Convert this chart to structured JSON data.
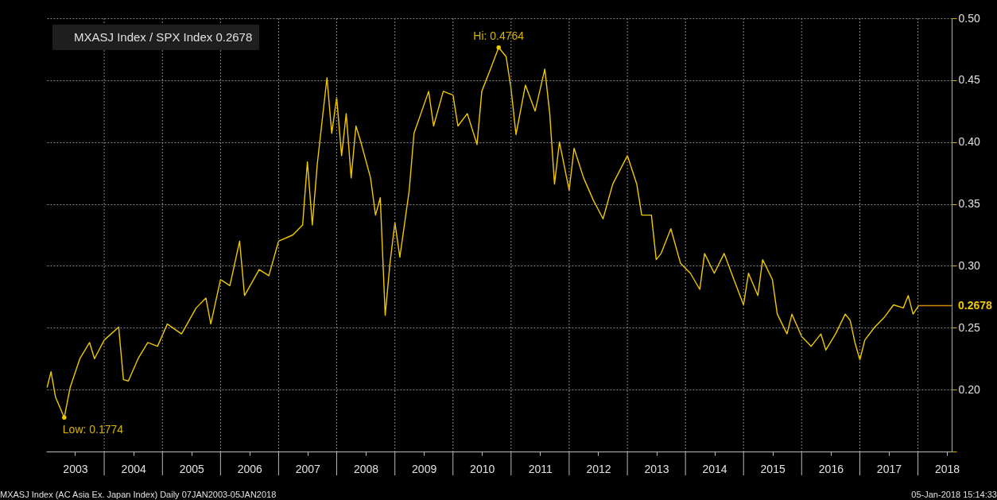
{
  "chart_data": {
    "type": "line",
    "x": [
      "2003-01-07",
      "2003-02",
      "2003-03",
      "2003-04-25",
      "2003-06",
      "2003-08",
      "2003-10",
      "2003-11",
      "2004-01",
      "2004-04",
      "2004-05",
      "2004-06",
      "2004-08",
      "2004-10",
      "2004-12",
      "2005-02",
      "2005-05",
      "2005-08",
      "2005-10",
      "2005-11",
      "2006-01",
      "2006-03",
      "2006-05",
      "2006-06",
      "2006-09",
      "2006-11",
      "2007-01",
      "2007-04",
      "2007-06",
      "2007-07",
      "2007-08",
      "2007-09",
      "2007-11",
      "2007-12",
      "2008-01",
      "2008-02",
      "2008-03",
      "2008-04",
      "2008-05",
      "2008-06",
      "2008-08",
      "2008-09",
      "2008-10",
      "2008-11",
      "2008-12",
      "2009-01",
      "2009-02",
      "2009-04",
      "2009-05",
      "2009-08",
      "2009-09",
      "2009-11",
      "2010-01",
      "2010-02",
      "2010-04",
      "2010-06",
      "2010-07",
      "2010-09",
      "2010-10-15",
      "2010-12",
      "2011-01",
      "2011-02",
      "2011-04",
      "2011-06",
      "2011-08",
      "2011-09",
      "2011-10",
      "2011-11",
      "2012-01",
      "2012-02",
      "2012-04",
      "2012-06",
      "2012-08",
      "2012-10",
      "2013-01",
      "2013-03",
      "2013-04",
      "2013-06",
      "2013-07",
      "2013-08",
      "2013-10",
      "2013-12",
      "2014-02",
      "2014-04",
      "2014-05",
      "2014-07",
      "2014-09",
      "2014-11",
      "2015-01",
      "2015-02",
      "2015-04",
      "2015-05",
      "2015-07",
      "2015-08",
      "2015-10",
      "2015-11",
      "2016-01",
      "2016-03",
      "2016-05",
      "2016-06",
      "2016-08",
      "2016-10",
      "2016-11",
      "2016-12",
      "2017-01",
      "2017-02",
      "2017-04",
      "2017-06",
      "2017-08",
      "2017-10",
      "2017-11",
      "2017-12",
      "2018-01-05"
    ],
    "series": [
      {
        "name": "MXASJ Index / SPX Index 0.2678",
        "color": "#f0c800",
        "values": [
          0.2017,
          0.2145,
          0.194,
          0.1774,
          0.2017,
          0.225,
          0.238,
          0.225,
          0.24,
          0.2505,
          0.208,
          0.207,
          0.225,
          0.238,
          0.235,
          0.253,
          0.245,
          0.266,
          0.274,
          0.253,
          0.289,
          0.284,
          0.32,
          0.276,
          0.297,
          0.292,
          0.32,
          0.325,
          0.333,
          0.384,
          0.333,
          0.382,
          0.452,
          0.407,
          0.436,
          0.389,
          0.423,
          0.371,
          0.413,
          0.4,
          0.371,
          0.341,
          0.355,
          0.26,
          0.302,
          0.335,
          0.307,
          0.361,
          0.407,
          0.441,
          0.413,
          0.441,
          0.438,
          0.413,
          0.423,
          0.398,
          0.441,
          0.4614,
          0.4764,
          0.469,
          0.443,
          0.406,
          0.446,
          0.425,
          0.459,
          0.423,
          0.366,
          0.4,
          0.361,
          0.395,
          0.371,
          0.353,
          0.338,
          0.366,
          0.389,
          0.366,
          0.341,
          0.341,
          0.305,
          0.31,
          0.33,
          0.302,
          0.294,
          0.281,
          0.31,
          0.294,
          0.31,
          0.289,
          0.2685,
          0.294,
          0.276,
          0.305,
          0.289,
          0.261,
          0.245,
          0.261,
          0.243,
          0.235,
          0.245,
          0.232,
          0.245,
          0.261,
          0.256,
          0.238,
          0.224,
          0.24,
          0.25,
          0.258,
          0.2685,
          0.266,
          0.276,
          0.261,
          0.2678
        ]
      },
      {
        "type": "line",
        "color": "#d08a00",
        "x": [
          "2018-01-05",
          "2018-08-01"
        ],
        "values": [
          0.2678,
          0.2678
        ]
      }
    ],
    "xlim": [
      "2003-01-01",
      "2018-08-01"
    ],
    "xticks": [
      {
        "value": "2003-07-02",
        "label": "2003"
      },
      {
        "value": "2004-01-01",
        "label": null
      },
      {
        "value": "2004-07-02",
        "label": "2004"
      },
      {
        "value": "2005-01-01",
        "label": null
      },
      {
        "value": "2005-07-02",
        "label": "2005"
      },
      {
        "value": "2006-01-01",
        "label": null
      },
      {
        "value": "2006-07-02",
        "label": "2006"
      },
      {
        "value": "2007-01-01",
        "label": null
      },
      {
        "value": "2007-07-02",
        "label": "2007"
      },
      {
        "value": "2008-01-01",
        "label": null
      },
      {
        "value": "2008-07-02",
        "label": "2008"
      },
      {
        "value": "2009-01-01",
        "label": null
      },
      {
        "value": "2009-07-02",
        "label": "2009"
      },
      {
        "value": "2010-01-01",
        "label": null
      },
      {
        "value": "2010-07-02",
        "label": "2010"
      },
      {
        "value": "2011-01-01",
        "label": null
      },
      {
        "value": "2011-07-02",
        "label": "2011"
      },
      {
        "value": "2012-01-01",
        "label": null
      },
      {
        "value": "2012-07-02",
        "label": "2012"
      },
      {
        "value": "2013-01-01",
        "label": null
      },
      {
        "value": "2013-07-02",
        "label": "2013"
      },
      {
        "value": "2014-01-01",
        "label": null
      },
      {
        "value": "2014-07-02",
        "label": "2014"
      },
      {
        "value": "2015-01-01",
        "label": null
      },
      {
        "value": "2015-07-02",
        "label": "2015"
      },
      {
        "value": "2016-01-01",
        "label": null
      },
      {
        "value": "2016-07-02",
        "label": "2016"
      },
      {
        "value": "2017-01-01",
        "label": null
      },
      {
        "value": "2017-07-02",
        "label": "2017"
      },
      {
        "value": "2018-01-01",
        "label": null
      },
      {
        "value": "2018-07-02",
        "label": "2018"
      }
    ],
    "ylim": [
      0.15,
      0.5
    ],
    "yticks": [
      {
        "value": 0.15,
        "label": null
      },
      {
        "value": 0.2,
        "label": "0.20"
      },
      {
        "value": 0.25,
        "label": "0.25"
      },
      {
        "value": 0.3,
        "label": "0.30"
      },
      {
        "value": 0.35,
        "label": "0.35"
      },
      {
        "value": 0.4,
        "label": "0.40"
      },
      {
        "value": 0.45,
        "label": "0.45"
      },
      {
        "value": 0.5,
        "label": "0.50"
      }
    ],
    "grid": true,
    "legend": "top left",
    "line_style": "solid",
    "annotations": [
      {
        "text": "Hi: 0.4764",
        "x": "2010-10-15",
        "y": 0.4764
      },
      {
        "text": "Low: 0.1774",
        "x": "2003-04-25",
        "y": 0.1774
      },
      {
        "text": "0.2678",
        "x": "2018-08-01",
        "y": 0.2678
      },
      "MXASJ Index (AC Asia Ex. Japan Index)  Daily 07JAN2003-05JAN2018",
      "05-Jan-2018 15:14:33"
    ]
  }
}
